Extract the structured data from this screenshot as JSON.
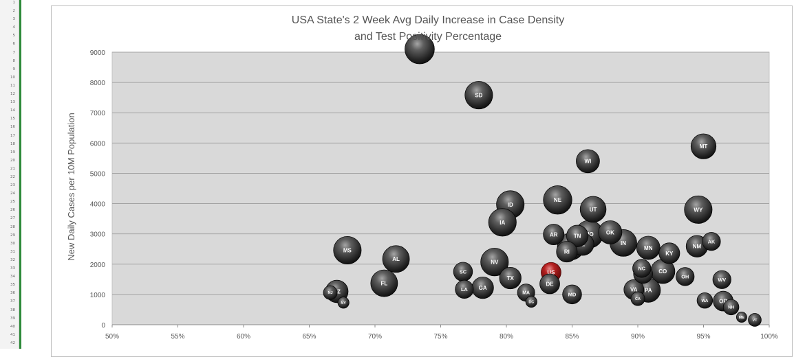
{
  "spreadsheet": {
    "row_numbers": [
      "1",
      "2",
      "3",
      "4",
      "5",
      "6",
      "7",
      "8",
      "9",
      "10",
      "11",
      "12",
      "13",
      "14",
      "15",
      "16",
      "17",
      "18",
      "19",
      "20",
      "21",
      "22",
      "23",
      "24",
      "25",
      "26",
      "27",
      "28",
      "29",
      "30",
      "31",
      "32",
      "33",
      "34",
      "35",
      "36",
      "37",
      "38",
      "39",
      "40",
      "41",
      "42"
    ]
  },
  "chart_data": {
    "type": "scatter",
    "title_line1": "USA State's 2 Week Avg Daily Increase in Case Density",
    "title_line2": "and Test Positivity Percentage",
    "xlabel": "",
    "ylabel": "New Daily  Cases per 10M Population",
    "xlim": [
      50,
      100
    ],
    "ylim": [
      0,
      9000
    ],
    "x_ticks": [
      {
        "value": 50,
        "label": "50%"
      },
      {
        "value": 55,
        "label": "55%"
      },
      {
        "value": 60,
        "label": "60%"
      },
      {
        "value": 65,
        "label": "65%"
      },
      {
        "value": 70,
        "label": "70%"
      },
      {
        "value": 75,
        "label": "75%"
      },
      {
        "value": 80,
        "label": "80%"
      },
      {
        "value": 85,
        "label": "85%"
      },
      {
        "value": 90,
        "label": "90%"
      },
      {
        "value": 95,
        "label": "95%"
      },
      {
        "value": 100,
        "label": "100%"
      }
    ],
    "y_ticks": [
      {
        "value": 0,
        "label": "0"
      },
      {
        "value": 1000,
        "label": "1000"
      },
      {
        "value": 2000,
        "label": "2000"
      },
      {
        "value": 3000,
        "label": "3000"
      },
      {
        "value": 4000,
        "label": "4000"
      },
      {
        "value": 5000,
        "label": "5000"
      },
      {
        "value": 6000,
        "label": "6000"
      },
      {
        "value": 7000,
        "label": "7000"
      },
      {
        "value": 8000,
        "label": "8000"
      },
      {
        "value": 9000,
        "label": "9000"
      }
    ],
    "grid": "horizontal",
    "plot_background": "#d9d9d9",
    "bubble_color": "#3a3a3a",
    "highlight_color": "#9b1111",
    "points": [
      {
        "label": "",
        "x": 73.4,
        "y": 9100,
        "size": 3.4
      },
      {
        "label": "SD",
        "x": 77.9,
        "y": 7580,
        "size": 3.2
      },
      {
        "label": "MT",
        "x": 95.0,
        "y": 5890,
        "size": 2.9
      },
      {
        "label": "WI",
        "x": 86.2,
        "y": 5400,
        "size": 2.7
      },
      {
        "label": "NE",
        "x": 83.9,
        "y": 4120,
        "size": 3.3
      },
      {
        "label": "ID",
        "x": 80.3,
        "y": 3970,
        "size": 3.2
      },
      {
        "label": "UT",
        "x": 86.6,
        "y": 3810,
        "size": 3.0
      },
      {
        "label": "WY",
        "x": 94.6,
        "y": 3800,
        "size": 3.2
      },
      {
        "label": "IA",
        "x": 79.7,
        "y": 3380,
        "size": 3.2
      },
      {
        "label": "AR",
        "x": 83.6,
        "y": 2980,
        "size": 2.4
      },
      {
        "label": "TN",
        "x": 85.4,
        "y": 2930,
        "size": 2.5
      },
      {
        "label": "MO",
        "x": 86.3,
        "y": 2990,
        "size": 3.2
      },
      {
        "label": "OK",
        "x": 87.9,
        "y": 3050,
        "size": 2.7
      },
      {
        "label": "IL",
        "x": 85.8,
        "y": 2660,
        "size": 2.6
      },
      {
        "label": "KS",
        "x": 84.9,
        "y": 2580,
        "size": 3.1
      },
      {
        "label": "IN",
        "x": 88.9,
        "y": 2700,
        "size": 3.1
      },
      {
        "label": "AK",
        "x": 95.6,
        "y": 2750,
        "size": 2.1
      },
      {
        "label": "NM",
        "x": 94.5,
        "y": 2590,
        "size": 2.5
      },
      {
        "label": "MN",
        "x": 90.8,
        "y": 2540,
        "size": 2.7
      },
      {
        "label": "RI",
        "x": 84.6,
        "y": 2410,
        "size": 2.4
      },
      {
        "label": "KY",
        "x": 92.4,
        "y": 2360,
        "size": 2.4
      },
      {
        "label": "MS",
        "x": 67.9,
        "y": 2460,
        "size": 3.2
      },
      {
        "label": "AL",
        "x": 71.6,
        "y": 2170,
        "size": 3.1
      },
      {
        "label": "NV",
        "x": 79.1,
        "y": 2070,
        "size": 3.2
      },
      {
        "label": "US",
        "x": 83.4,
        "y": 1730,
        "size": 2.3,
        "highlight": true
      },
      {
        "label": "SC",
        "x": 76.7,
        "y": 1750,
        "size": 2.2
      },
      {
        "label": "NC",
        "x": 90.3,
        "y": 1860,
        "size": 2.1
      },
      {
        "label": "CO",
        "x": 91.9,
        "y": 1760,
        "size": 2.8
      },
      {
        "label": "MI",
        "x": 90.4,
        "y": 1680,
        "size": 2.2
      },
      {
        "label": "OH",
        "x": 93.6,
        "y": 1590,
        "size": 2.1
      },
      {
        "label": "TX",
        "x": 80.3,
        "y": 1540,
        "size": 2.5
      },
      {
        "label": "WV",
        "x": 96.4,
        "y": 1490,
        "size": 2.1
      },
      {
        "label": "FL",
        "x": 70.7,
        "y": 1370,
        "size": 3.1
      },
      {
        "label": "DE",
        "x": 83.3,
        "y": 1350,
        "size": 2.3
      },
      {
        "label": "GA",
        "x": 78.2,
        "y": 1220,
        "size": 2.5
      },
      {
        "label": "LA",
        "x": 76.8,
        "y": 1170,
        "size": 2.1
      },
      {
        "label": "VA",
        "x": 89.7,
        "y": 1160,
        "size": 2.3
      },
      {
        "label": "PA",
        "x": 90.8,
        "y": 1140,
        "size": 2.8
      },
      {
        "label": "AZ",
        "x": 67.1,
        "y": 1100,
        "size": 2.6
      },
      {
        "label": "NJ",
        "x": 66.6,
        "y": 1060,
        "size": 1.6
      },
      {
        "label": "MA",
        "x": 81.5,
        "y": 1060,
        "size": 2.0
      },
      {
        "label": "MD",
        "x": 85.0,
        "y": 1000,
        "size": 2.2
      },
      {
        "label": "CA",
        "x": 90.0,
        "y": 860,
        "size": 1.6
      },
      {
        "label": "WA",
        "x": 95.1,
        "y": 800,
        "size": 1.8
      },
      {
        "label": "OR",
        "x": 96.5,
        "y": 780,
        "size": 2.3
      },
      {
        "label": "DC",
        "x": 81.9,
        "y": 760,
        "size": 1.3
      },
      {
        "label": "NY",
        "x": 67.6,
        "y": 730,
        "size": 1.3
      },
      {
        "label": "NH",
        "x": 97.1,
        "y": 580,
        "size": 1.8
      },
      {
        "label": "ME",
        "x": 97.9,
        "y": 250,
        "size": 1.2
      },
      {
        "label": "VT",
        "x": 98.9,
        "y": 160,
        "size": 1.5
      }
    ]
  }
}
